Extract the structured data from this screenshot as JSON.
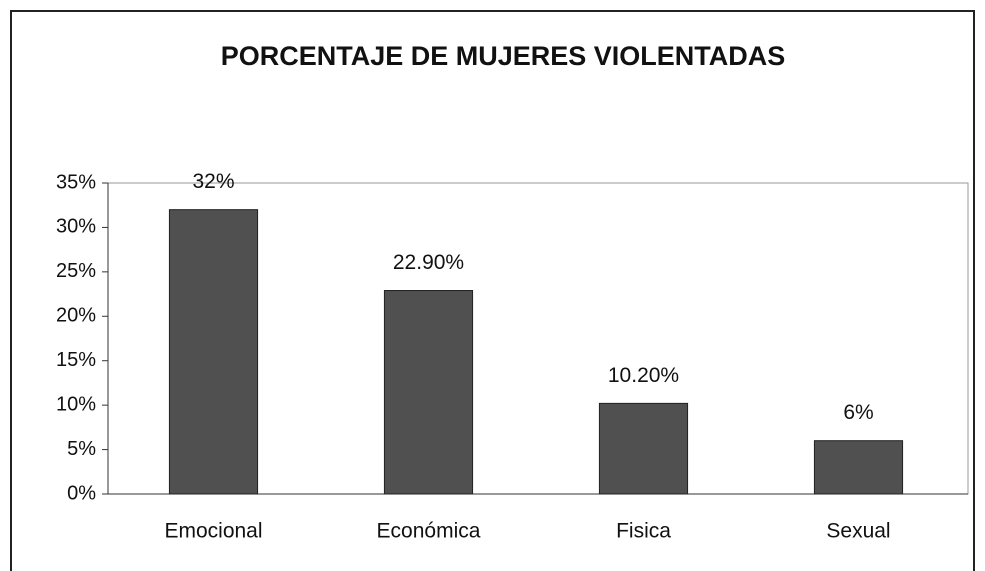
{
  "chart_data": {
    "type": "bar",
    "title": "PORCENTAJE DE MUJERES VIOLENTADAS",
    "categories": [
      "Emocional",
      "Económica",
      "Fisica",
      "Sexual"
    ],
    "values": [
      32,
      22.9,
      10.2,
      6
    ],
    "value_labels": [
      "32%",
      "22.90%",
      "10.20%",
      "6%"
    ],
    "color": "#505050",
    "ylim": [
      0,
      35
    ],
    "yticks": [
      {
        "value": 0,
        "label": "0%"
      },
      {
        "value": 5,
        "label": "5%"
      },
      {
        "value": 10,
        "label": "10%"
      },
      {
        "value": 15,
        "label": "15%"
      },
      {
        "value": 20,
        "label": "20%"
      },
      {
        "value": 25,
        "label": "25%"
      },
      {
        "value": 30,
        "label": "30%"
      },
      {
        "value": 35,
        "label": "35%"
      }
    ],
    "grid": false
  }
}
